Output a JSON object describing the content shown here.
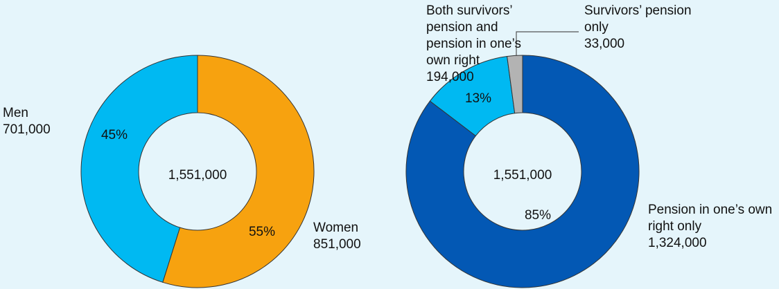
{
  "chart_data": [
    {
      "type": "donut",
      "categories": [
        "Women",
        "Men"
      ],
      "values": [
        851000,
        701000
      ],
      "value_labels": [
        "851,000",
        "701,000"
      ],
      "shares": [
        55,
        45
      ],
      "share_labels": [
        "55%",
        "45%"
      ],
      "colors": [
        "#f7a20f",
        "#00b9f2"
      ],
      "total": 1551000,
      "total_label": "1,551,000"
    },
    {
      "type": "donut",
      "categories": [
        "Pension in one’s own right only",
        "Both survivors’ pension and pension in one’s own right",
        "Survivors’ pension only"
      ],
      "values": [
        1324000,
        194000,
        33000
      ],
      "value_labels": [
        "1,324,000",
        "194,000",
        "33,000"
      ],
      "shares": [
        85,
        13,
        null
      ],
      "share_labels": [
        "85%",
        "13%",
        null
      ],
      "colors": [
        "#0358b4",
        "#00b9f2",
        "#b3b3b3"
      ],
      "total": 1551000,
      "total_label": "1,551,000"
    }
  ]
}
